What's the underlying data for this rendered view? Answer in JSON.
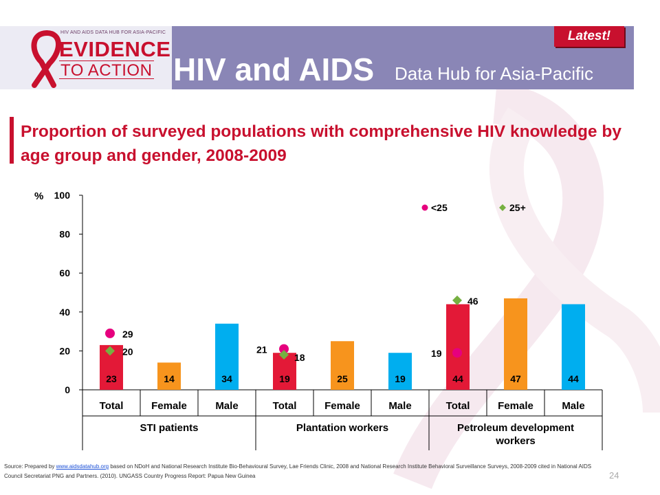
{
  "header": {
    "logo_small": "HIV AND AIDS DATA HUB FOR ASIA-PACIFIC",
    "logo_evidence": "EVIDENCE",
    "logo_action": "TO ACTION",
    "brand_title": "HIV and AIDS",
    "brand_subtitle": "Data Hub for Asia-Pacific",
    "latest_label": "Latest!"
  },
  "slide": {
    "title": "Proportion of surveyed populations with comprehensive HIV knowledge by age group and gender, 2008-2009",
    "source_prefix": "Source: Prepared by",
    "source_link": "www.aidsdatahub.org",
    "source_rest": "based on NDoH and National Research Institute Bio-Behavioural Survey, Lae Friends Clinic, 2008 and National Research Institute Behavioral Surveillance Surveys, 2008-2009 cited in National AIDS Council Secretariat PNG and Partners. (2010). UNGASS Country Progress Report: Papua New Guinea",
    "page_number": "24"
  },
  "colors": {
    "banner": "#8a86b6",
    "accent": "#c8102e",
    "total_bar": "#e31937",
    "female_bar": "#f7941d",
    "male_bar": "#00aeef",
    "under25_marker": "#e6007e",
    "over25_marker": "#76b041"
  },
  "chart_data": {
    "type": "bar",
    "ylabel": "%",
    "ylim": [
      0,
      100
    ],
    "yticks": [
      0,
      20,
      40,
      60,
      80,
      100
    ],
    "groups": [
      "STI patients",
      "Plantation workers",
      "Petroleum development workers"
    ],
    "categories": [
      "Total",
      "Female",
      "Male",
      "Total",
      "Female",
      "Male",
      "Total",
      "Female",
      "Male"
    ],
    "values": [
      23,
      14,
      34,
      19,
      25,
      19,
      44,
      47,
      44
    ],
    "legend": [
      "<25",
      "25+"
    ],
    "markers": [
      {
        "group": "STI patients",
        "under25": 29,
        "over25": 20
      },
      {
        "group": "Plantation workers",
        "under25": 21,
        "over25": 18
      },
      {
        "group": "Petroleum development workers",
        "under25": 19,
        "over25": 46
      }
    ]
  }
}
